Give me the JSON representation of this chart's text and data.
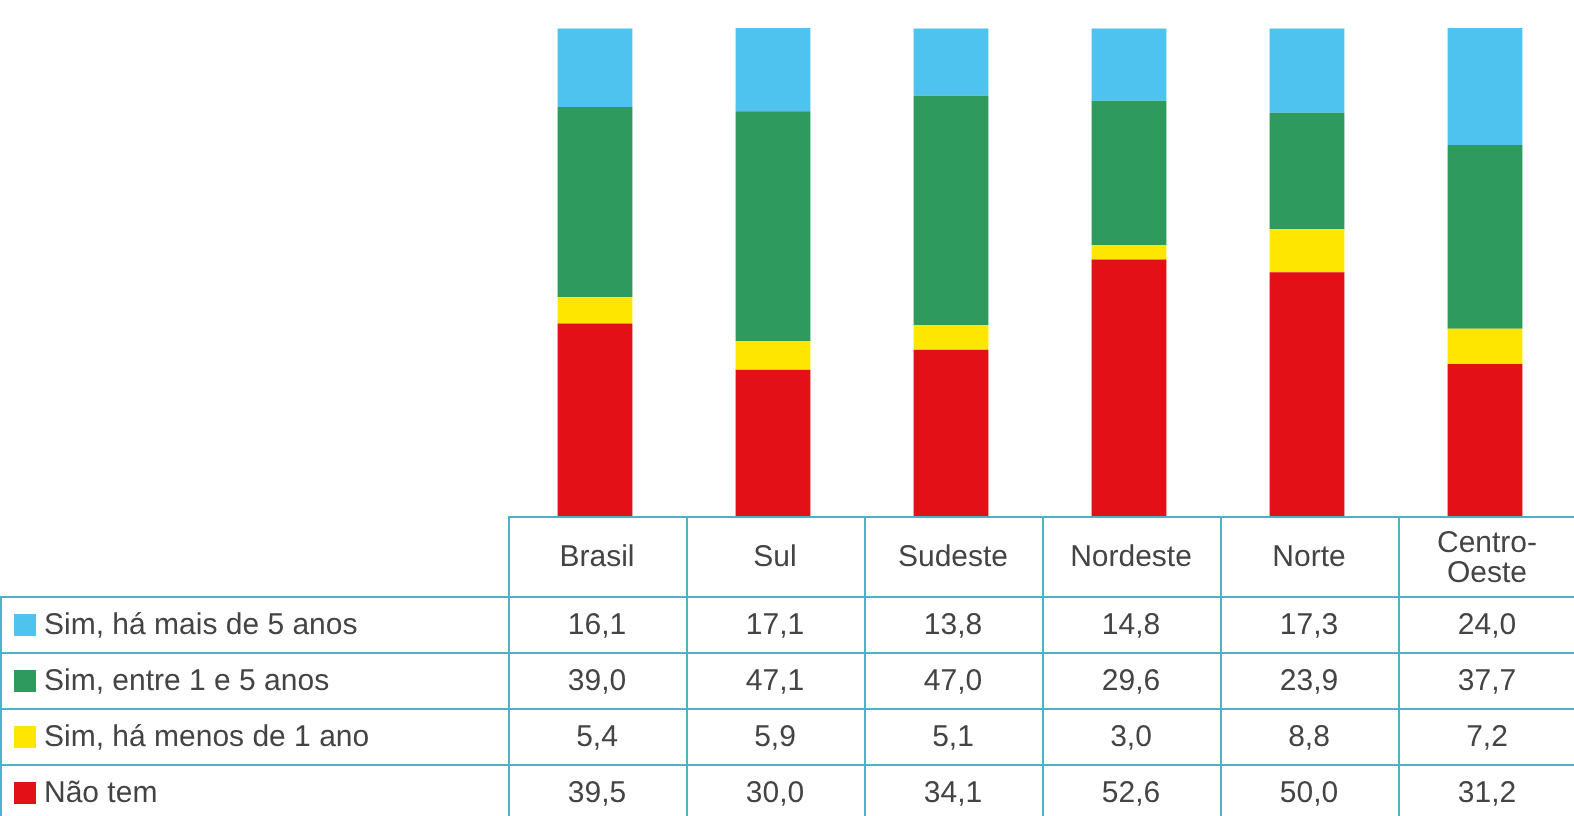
{
  "chart_data": {
    "type": "bar",
    "stacked": true,
    "legend": "bottom left",
    "categories": [
      "Brasil",
      "Sul",
      "Sudeste",
      "Nordeste",
      "Norte",
      "Centro-Oeste"
    ],
    "series": [
      {
        "name": "Não tem",
        "color": "#e31018",
        "values": [
          39.5,
          30.0,
          34.1,
          52.6,
          50.0,
          31.2
        ],
        "value_labels": [
          "39,5",
          "30,0",
          "34,1",
          "52,6",
          "50,0",
          "31,2"
        ]
      },
      {
        "name": "Sim, há menos de 1 ano",
        "color": "#ffe600",
        "values": [
          5.4,
          5.9,
          5.1,
          3.0,
          8.8,
          7.2
        ],
        "value_labels": [
          "5,4",
          "5,9",
          "5,1",
          "3,0",
          "8,8",
          "7,2"
        ]
      },
      {
        "name": "Sim, entre 1 e 5 anos",
        "color": "#2e9a5e",
        "values": [
          39.0,
          47.1,
          47.0,
          29.6,
          23.9,
          37.7
        ],
        "value_labels": [
          "39,0",
          "47,1",
          "47,0",
          "29,6",
          "23,9",
          "37,7"
        ]
      },
      {
        "name": "Sim, há mais de 5 anos",
        "color": "#4fc3f0",
        "values": [
          16.1,
          17.1,
          13.8,
          14.8,
          17.3,
          24.0
        ],
        "value_labels": [
          "16,1",
          "17,1",
          "13,8",
          "14,8",
          "17,3",
          "24,0"
        ]
      }
    ]
  }
}
